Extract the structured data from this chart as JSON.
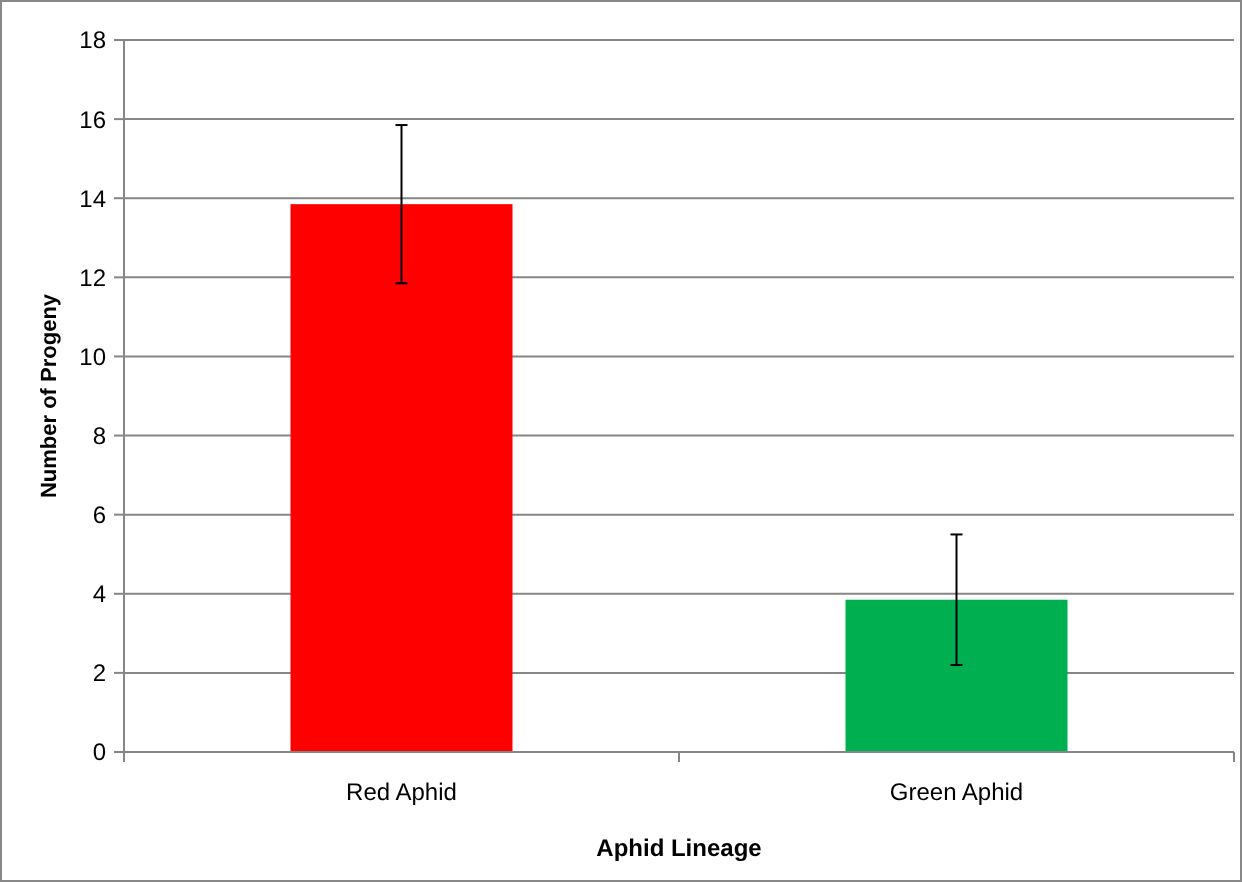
{
  "chart_data": {
    "type": "bar",
    "xlabel": "Aphid Lineage",
    "ylabel": "Number of Progeny",
    "categories": [
      "Red Aphid",
      "Green Aphid"
    ],
    "values": [
      13.85,
      3.85
    ],
    "colors": [
      "#ff0000",
      "#00b050"
    ],
    "errors": [
      2,
      1.65
    ],
    "ylim": [
      0,
      18
    ],
    "yticks": [
      0,
      2,
      4,
      6,
      8,
      10,
      12,
      14,
      16,
      18
    ],
    "grid": "y"
  }
}
